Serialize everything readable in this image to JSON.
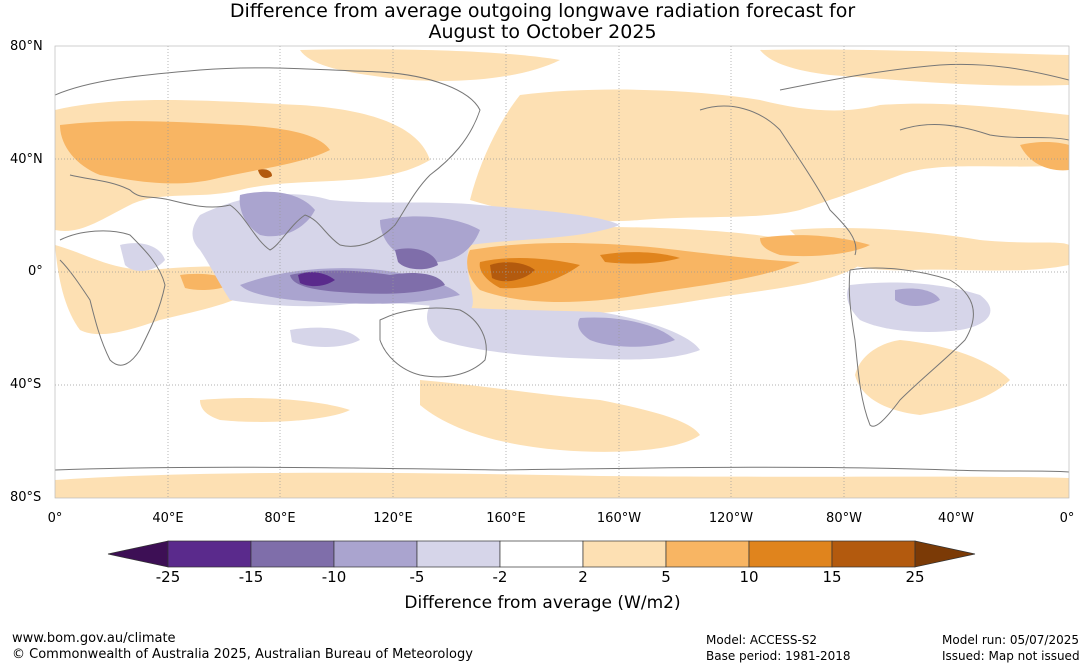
{
  "title": {
    "line1": "Difference from average outgoing longwave radiation forecast for",
    "line2": "August to October 2025"
  },
  "axes": {
    "lat_labels": [
      "80°N",
      "40°N",
      "0°",
      "40°S",
      "80°S"
    ],
    "lon_labels": [
      "0°",
      "40°E",
      "80°E",
      "120°E",
      "160°E",
      "160°W",
      "120°W",
      "80°W",
      "40°W",
      "0°"
    ]
  },
  "colorbar": {
    "title": "Difference from average (W/m2)",
    "ticks": [
      "-25",
      "-15",
      "-10",
      "-5",
      "-2",
      "2",
      "5",
      "10",
      "15",
      "25"
    ],
    "colors": [
      "#3d0f55",
      "#5a2a8c",
      "#7f6eaa",
      "#aaa4cf",
      "#d6d5e9",
      "#ffffff",
      "#fde0b3",
      "#f8b563",
      "#e0841d",
      "#b35a0e",
      "#7b3a06"
    ]
  },
  "footer": {
    "url": "www.bom.gov.au/climate",
    "copyright": "© Commonwealth of Australia 2025, Australian Bureau of Meteorology",
    "model": "Model: ACCESS-S2",
    "base_period": "Base period: 1981-2018",
    "model_run": "Model run: 05/07/2025",
    "issued": "Issued: Map not issued"
  }
}
